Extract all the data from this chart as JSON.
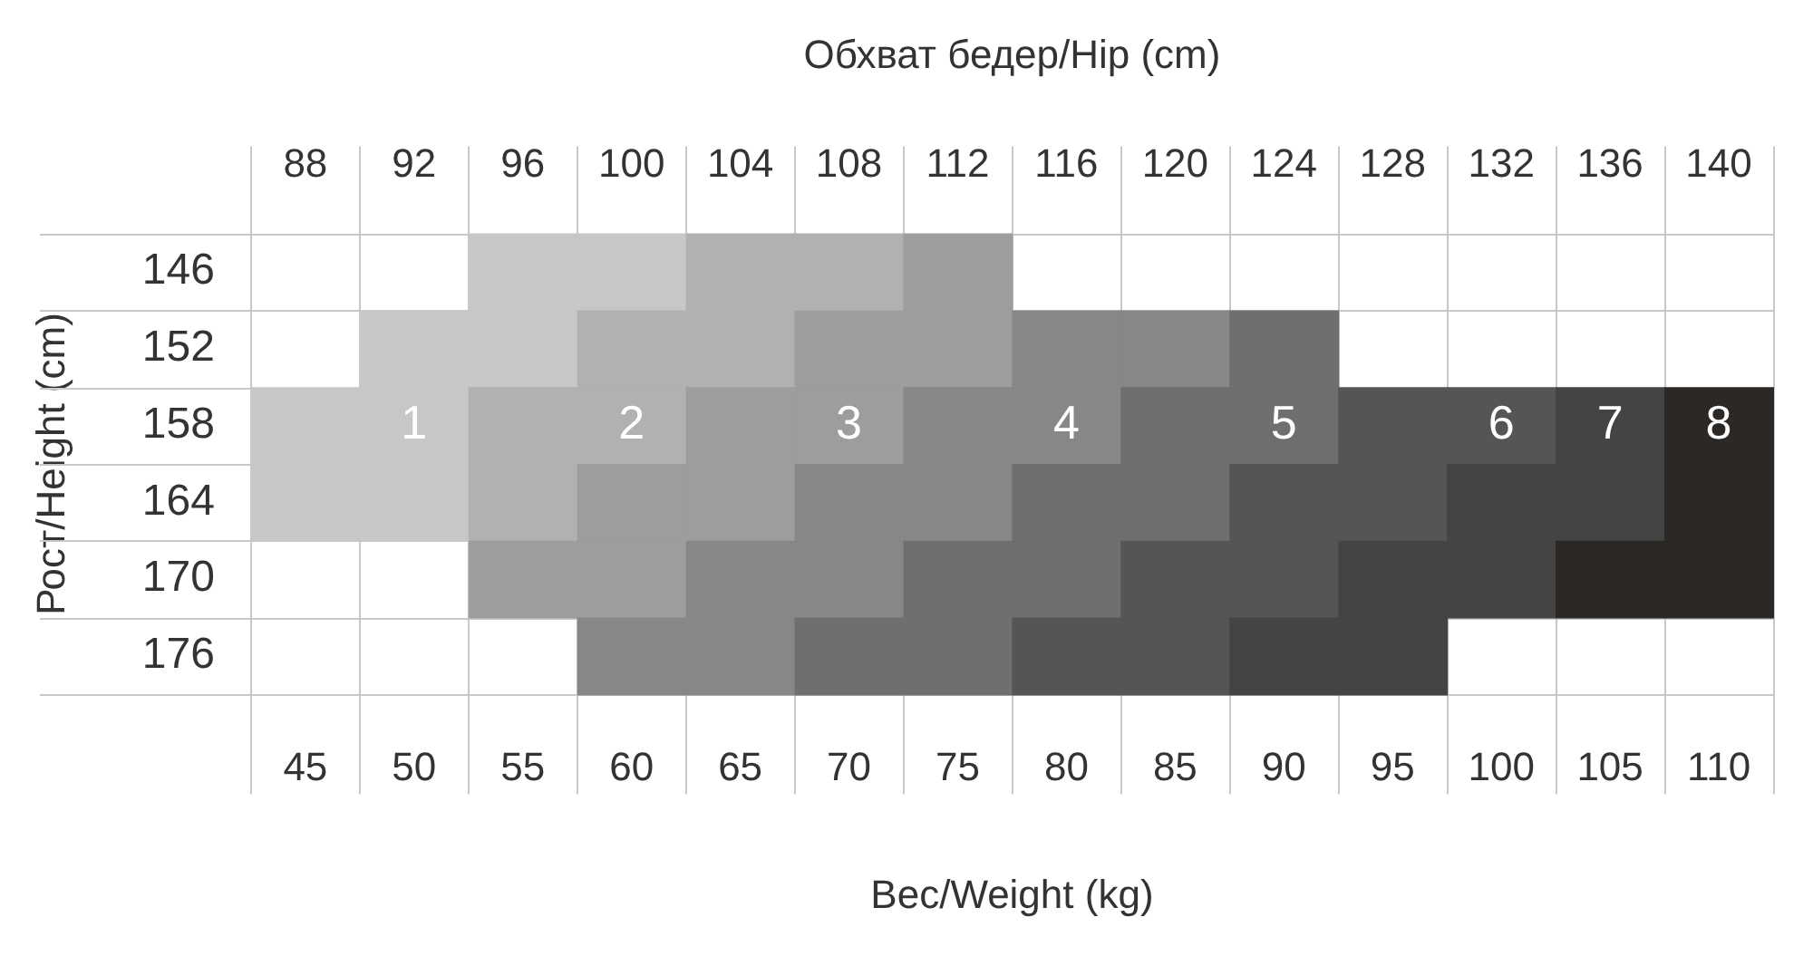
{
  "chart_data": {
    "type": "heatmap",
    "xlabel": "Вес/Weight (kg)",
    "x2label": "Обхват бедер/Hip (cm)",
    "ylabel": "Рост/Height (cm)",
    "categories": [
      "45",
      "50",
      "55",
      "60",
      "65",
      "70",
      "75",
      "80",
      "85",
      "90",
      "95",
      "100",
      "105",
      "110"
    ],
    "x2lim": [
      86,
      142
    ],
    "x2ticks": [
      88,
      92,
      96,
      100,
      104,
      108,
      112,
      116,
      120,
      124,
      128,
      132,
      136,
      140
    ],
    "y_categories": [
      "146",
      "152",
      "158",
      "164",
      "170",
      "176"
    ],
    "cells": [
      [
        null,
        null,
        null,
        null,
        null,
        null,
        null,
        null,
        null,
        null,
        null,
        null,
        null,
        null
      ],
      [
        null,
        null,
        null,
        null,
        null,
        null,
        null,
        null,
        null,
        null,
        null,
        null,
        null,
        null
      ],
      [
        null,
        1,
        null,
        2,
        null,
        3,
        null,
        4,
        null,
        5,
        null,
        6,
        7,
        8
      ],
      [
        null,
        null,
        null,
        null,
        null,
        null,
        null,
        null,
        null,
        null,
        null,
        null,
        null,
        null
      ],
      [
        null,
        null,
        null,
        null,
        null,
        null,
        null,
        null,
        null,
        null,
        null,
        null,
        null,
        null
      ],
      [
        null,
        null,
        null,
        null,
        null,
        null,
        null,
        null,
        null,
        null,
        null,
        null,
        null,
        null
      ]
    ],
    "colors": [
      [
        null,
        null,
        "#c6c8c7",
        "#c6c8c7",
        "#b0b1b0",
        "#b0b1b0",
        "#9c9d9c",
        null,
        null,
        null,
        null,
        null,
        null,
        null
      ],
      [
        null,
        "#c6c8c7",
        "#c6c8c7",
        "#b0b1b0",
        "#b0b1b0",
        "#9c9d9c",
        "#9c9d9c",
        "#878787",
        "#878787",
        "#6f6f6e",
        null,
        null,
        null,
        null
      ],
      [
        "#c6c8c7",
        "#c6c8c7",
        "#b0b1b0",
        "#b0b1b0",
        "#9c9d9c",
        "#9c9d9c",
        "#878787",
        "#878787",
        "#6f6f6e",
        "#6f6f6e",
        "#555555",
        "#555555",
        "#444444",
        "#2b2826"
      ],
      [
        "#c6c8c7",
        "#c6c8c7",
        "#b0b1b0",
        "#9c9d9c",
        "#9c9d9c",
        "#878787",
        "#878787",
        "#6f6f6e",
        "#6f6f6e",
        "#555555",
        "#555555",
        "#444444",
        "#444444",
        "#2b2826"
      ],
      [
        null,
        null,
        "#9c9d9c",
        "#9c9d9c",
        "#878787",
        "#878787",
        "#6f6f6e",
        "#6f6f6e",
        "#555555",
        "#555555",
        "#444444",
        "#444444",
        "#2b2826",
        "#2b2826"
      ],
      [
        null,
        null,
        null,
        "#878787",
        "#878787",
        "#6f6f6e",
        "#6f6f6e",
        "#555555",
        "#555555",
        "#444444",
        "#444444",
        null,
        null,
        null
      ]
    ],
    "data_labels": true,
    "grid": true
  }
}
